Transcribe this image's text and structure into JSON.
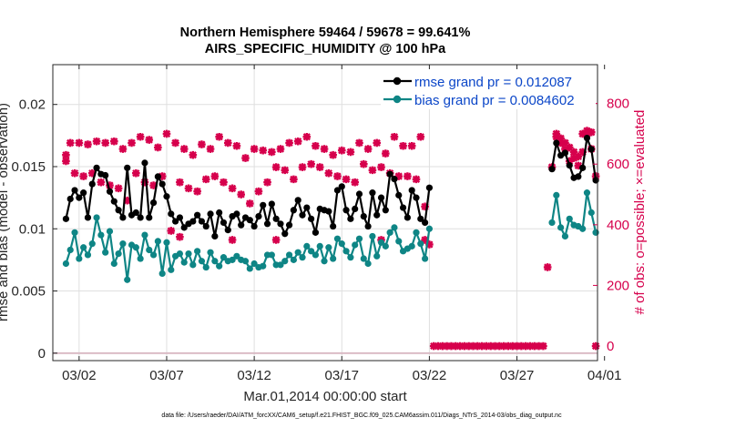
{
  "chart_data": {
    "type": "line",
    "title": "Northern Hemisphere 59464 / 59678 = 99.641%",
    "subtitle": "AIRS_SPECIFIC_HUMIDITY @ 100 hPa",
    "xlabel": "Mar.01,2014 00:00:00 start",
    "ylabel_left": "rmse and bias (model - observation)",
    "ylabel_right": "# of obs: o=possible; ×=evaluated",
    "footnote": "data file: /Users/raeder/DAI/ATM_forcXX/CAM6_setup/f.e21.FHIST_BGC.f09_025.CAM6assim.011/Diags_NTrS_2014-03/obs_diag_output.nc",
    "xlim": [
      0.5,
      31.6
    ],
    "ylim_left": [
      -0.0006,
      0.0232
    ],
    "ylim_right": [
      -48,
      928
    ],
    "x_ticks": [
      2,
      7,
      12,
      17,
      22,
      27,
      32
    ],
    "x_tick_labels": [
      "03/02",
      "03/07",
      "03/12",
      "03/17",
      "03/22",
      "03/27",
      "04/01"
    ],
    "y_left_ticks": [
      0,
      0.005,
      0.01,
      0.015,
      0.02
    ],
    "y_left_tick_labels": [
      "0",
      "0.005",
      "0.01",
      "0.015",
      "0.02"
    ],
    "y_right_ticks": [
      0,
      200,
      400,
      600,
      800
    ],
    "y_right_tick_labels": [
      "0",
      "200",
      "400",
      "600",
      "800"
    ],
    "grid": true,
    "legend_position": "top-right",
    "series": [
      {
        "name": "rmse grand pr = 0.012087",
        "color": "#000000",
        "axis": "left",
        "segments": [
          {
            "x": [
              1.25,
              1.5,
              1.75,
              2.0,
              2.25,
              2.5,
              2.75,
              3.0,
              3.25,
              3.5,
              3.75,
              4.0,
              4.25,
              4.5,
              4.75,
              5.0,
              5.25,
              5.5,
              5.75,
              6.0,
              6.25,
              6.5,
              6.75,
              7.0,
              7.25,
              7.5,
              7.75,
              8.0,
              8.25,
              8.5,
              8.75,
              9.0,
              9.25,
              9.5,
              9.75,
              10.0,
              10.25,
              10.5,
              10.75,
              11.0,
              11.25,
              11.5,
              11.75,
              12.0,
              12.25,
              12.5,
              12.75,
              13.0,
              13.25,
              13.5,
              13.75,
              14.0,
              14.25,
              14.5,
              14.75,
              15.0,
              15.25,
              15.5,
              15.75,
              16.0,
              16.25,
              16.5,
              16.75,
              17.0,
              17.25,
              17.5,
              17.75,
              18.0,
              18.25,
              18.5,
              18.75,
              19.0,
              19.25,
              19.5,
              19.75,
              20.0,
              20.25,
              20.5,
              20.75,
              21.0,
              21.25,
              21.5,
              21.75,
              22.0
            ],
            "y": [
              0.0108,
              0.0124,
              0.0131,
              0.0125,
              0.0129,
              0.0109,
              0.0136,
              0.0149,
              0.0144,
              0.0143,
              0.013,
              0.0122,
              0.0115,
              0.0109,
              0.0149,
              0.0111,
              0.0113,
              0.0109,
              0.0153,
              0.0109,
              0.0121,
              0.0142,
              0.0136,
              0.0126,
              0.0112,
              0.0106,
              0.0109,
              0.0101,
              0.0104,
              0.0106,
              0.0111,
              0.0106,
              0.0102,
              0.0112,
              0.0094,
              0.0113,
              0.0105,
              0.0099,
              0.011,
              0.0112,
              0.0103,
              0.0109,
              0.0107,
              0.0102,
              0.011,
              0.0119,
              0.0104,
              0.012,
              0.0108,
              0.0104,
              0.0096,
              0.0103,
              0.0115,
              0.0123,
              0.0111,
              0.0117,
              0.0108,
              0.0097,
              0.0116,
              0.0115,
              0.0114,
              0.0102,
              0.0131,
              0.0134,
              0.0115,
              0.0108,
              0.0116,
              0.0128,
              0.011,
              0.0102,
              0.0129,
              0.0111,
              0.0125,
              0.0115,
              0.0144,
              0.014,
              0.0127,
              0.0117,
              0.0109,
              0.0131,
              0.0125,
              0.0108,
              0.0105,
              0.0133
            ]
          },
          {
            "x": [
              29.0,
              29.25,
              29.5,
              29.75,
              30.0,
              30.25,
              30.5,
              30.75,
              31.0,
              31.25,
              31.5
            ],
            "y": [
              0.0148,
              0.0169,
              0.0159,
              0.0161,
              0.0151,
              0.0141,
              0.0142,
              0.0149,
              0.0173,
              0.0164,
              0.0139
            ]
          }
        ]
      },
      {
        "name": "bias grand pr = 0.0084602",
        "color": "#0e8585",
        "axis": "left",
        "segments": [
          {
            "x": [
              1.25,
              1.5,
              1.75,
              2.0,
              2.25,
              2.5,
              2.75,
              3.0,
              3.25,
              3.5,
              3.75,
              4.0,
              4.25,
              4.5,
              4.75,
              5.0,
              5.25,
              5.5,
              5.75,
              6.0,
              6.25,
              6.5,
              6.75,
              7.0,
              7.25,
              7.5,
              7.75,
              8.0,
              8.25,
              8.5,
              8.75,
              9.0,
              9.25,
              9.5,
              9.75,
              10.0,
              10.25,
              10.5,
              10.75,
              11.0,
              11.25,
              11.5,
              11.75,
              12.0,
              12.25,
              12.5,
              12.75,
              13.0,
              13.25,
              13.5,
              13.75,
              14.0,
              14.25,
              14.5,
              14.75,
              15.0,
              15.25,
              15.5,
              15.75,
              16.0,
              16.25,
              16.5,
              16.75,
              17.0,
              17.25,
              17.5,
              17.75,
              18.0,
              18.25,
              18.5,
              18.75,
              19.0,
              19.25,
              19.5,
              19.75,
              20.0,
              20.25,
              20.5,
              20.75,
              21.0,
              21.25,
              21.5,
              21.75,
              22.0
            ],
            "y": [
              0.0072,
              0.0083,
              0.0097,
              0.0076,
              0.0085,
              0.0079,
              0.0088,
              0.0109,
              0.0095,
              0.0081,
              0.0098,
              0.0072,
              0.008,
              0.0088,
              0.0059,
              0.0087,
              0.0085,
              0.0076,
              0.0095,
              0.0083,
              0.0079,
              0.009,
              0.0064,
              0.0089,
              0.0067,
              0.0078,
              0.008,
              0.0073,
              0.008,
              0.0071,
              0.0082,
              0.0074,
              0.0069,
              0.0081,
              0.0074,
              0.007,
              0.0077,
              0.0074,
              0.0075,
              0.0078,
              0.0075,
              0.0074,
              0.0068,
              0.0072,
              0.0069,
              0.007,
              0.0079,
              0.0079,
              0.0071,
              0.0071,
              0.0074,
              0.0079,
              0.0075,
              0.0081,
              0.0077,
              0.0086,
              0.0082,
              0.0079,
              0.0086,
              0.0074,
              0.0085,
              0.0076,
              0.0092,
              0.0088,
              0.0082,
              0.0077,
              0.0087,
              0.0092,
              0.0076,
              0.0072,
              0.0094,
              0.0078,
              0.0089,
              0.0086,
              0.0097,
              0.0101,
              0.009,
              0.0082,
              0.0084,
              0.0086,
              0.0097,
              0.0088,
              0.0076,
              0.01
            ]
          },
          {
            "x": [
              29.0,
              29.25,
              29.5,
              29.75,
              30.0,
              30.25,
              30.5,
              30.75,
              31.0,
              31.25,
              31.5
            ],
            "y": [
              0.0105,
              0.0127,
              0.0101,
              0.0094,
              0.0108,
              0.0103,
              0.0102,
              0.01,
              0.0129,
              0.0113,
              0.0097
            ]
          }
        ]
      }
    ],
    "obs_counts": {
      "color": "#d6004c",
      "axis": "right",
      "high_x": [
        1.25,
        1.5,
        2.0,
        2.5,
        3.0,
        3.5,
        4.0,
        4.5,
        5.0,
        5.5,
        6.0,
        6.5,
        7.0,
        7.5,
        8.0,
        8.5,
        9.0,
        9.5,
        10.0,
        10.5,
        11.0,
        11.5,
        12.0,
        12.5,
        13.0,
        13.5,
        14.0,
        14.5,
        15.0,
        15.5,
        16.0,
        16.5,
        17.0,
        17.5,
        18.0,
        18.5,
        19.0,
        19.5,
        20.0,
        20.5,
        21.0,
        21.5
      ],
      "high_y": [
        630,
        670,
        670,
        665,
        675,
        670,
        675,
        650,
        670,
        690,
        680,
        655,
        700,
        670,
        650,
        630,
        665,
        650,
        690,
        670,
        660,
        620,
        650,
        645,
        640,
        650,
        670,
        675,
        690,
        660,
        650,
        630,
        645,
        640,
        670,
        650,
        670,
        635,
        690,
        660,
        660,
        690
      ],
      "low_x": [
        1.25,
        1.75,
        2.25,
        2.75,
        3.25,
        3.75,
        4.25,
        4.75,
        5.25,
        5.75,
        6.25,
        6.75,
        7.25,
        7.75,
        8.25,
        8.75,
        9.25,
        9.75,
        10.25,
        10.75,
        11.25,
        11.75,
        12.25,
        12.75,
        13.25,
        13.75,
        14.25,
        14.75,
        15.25,
        15.75,
        16.25,
        16.75,
        17.25,
        17.75,
        18.25,
        18.75,
        19.25,
        19.75,
        20.25,
        20.75,
        21.25,
        21.75
      ],
      "low_y": [
        610,
        570,
        560,
        570,
        540,
        530,
        520,
        480,
        570,
        540,
        530,
        560,
        380,
        540,
        520,
        510,
        550,
        560,
        540,
        520,
        500,
        470,
        510,
        540,
        590,
        580,
        550,
        590,
        600,
        590,
        570,
        560,
        550,
        540,
        600,
        580,
        590,
        570,
        560,
        560,
        550,
        460
      ],
      "extra_x": [
        7.75,
        10.75,
        13.25,
        19.25,
        21.75,
        22.0
      ],
      "extra_y": [
        360,
        350,
        350,
        350,
        350,
        335
      ],
      "dec_x": [
        29.0,
        29.25,
        29.5,
        29.75,
        30.0,
        30.25,
        30.5,
        30.75,
        31.0,
        31.25,
        31.5
      ],
      "dec_y": [
        590,
        690,
        670,
        650,
        610,
        620,
        595,
        640,
        700,
        650,
        560
      ],
      "dec_high_x": [
        29.25,
        29.5,
        29.75,
        30.0,
        30.25,
        30.5,
        30.75,
        31.0,
        31.25
      ],
      "dec_high_y": [
        700,
        685,
        670,
        655,
        640,
        625,
        700,
        710,
        705
      ],
      "outlier_x": [
        28.75
      ],
      "outlier_y": [
        260
      ],
      "zero_x_start": 22.25,
      "zero_x_end": 28.5,
      "zero_x_step": 0.25,
      "zero_end_x": [
        31.5
      ]
    },
    "zero_line": {
      "y": 0,
      "color": "#d8b7c2"
    }
  }
}
